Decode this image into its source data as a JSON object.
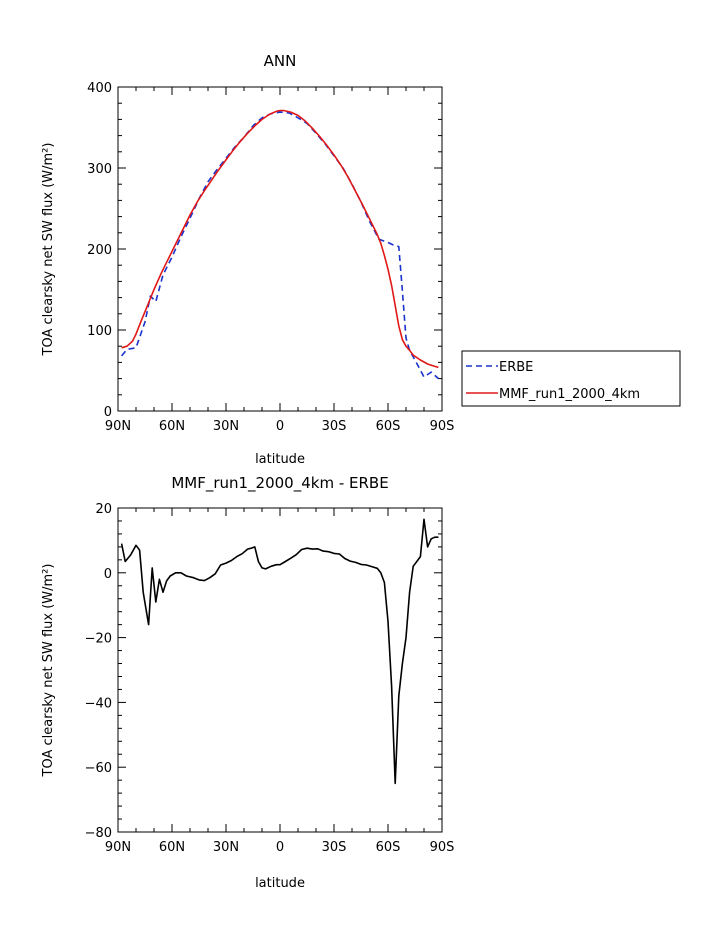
{
  "chart_data": [
    {
      "type": "line",
      "title": "ANN",
      "xlabel": "latitude",
      "ylabel": "TOA clearsky net SW flux (W/m²)",
      "xlim": [
        -90,
        90
      ],
      "ylim": [
        0,
        400
      ],
      "x_tick_values": [
        -90,
        -60,
        -30,
        0,
        30,
        60,
        90
      ],
      "x_tick_labels": [
        "90N",
        "60N",
        "30N",
        "0",
        "30S",
        "60S",
        "90S"
      ],
      "y_ticks": [
        0,
        100,
        200,
        300,
        400
      ],
      "grid": false,
      "legend_position": "right",
      "series": [
        {
          "name": "ERBE",
          "color": "#1a33cc",
          "dash": "dashed",
          "x": [
            -88,
            -85,
            -80,
            -75,
            -72,
            -69,
            -65,
            -60,
            -55,
            -50,
            -45,
            -40,
            -35,
            -30,
            -25,
            -20,
            -15,
            -10,
            -5,
            0,
            5,
            10,
            15,
            20,
            25,
            30,
            35,
            40,
            45,
            50,
            55,
            60,
            63,
            66,
            68,
            70,
            72,
            75,
            80,
            84,
            88
          ],
          "y": [
            68,
            76,
            78,
            110,
            142,
            135,
            168,
            190,
            215,
            238,
            262,
            283,
            298,
            312,
            326,
            338,
            352,
            362,
            367,
            369,
            368,
            362,
            355,
            343,
            330,
            315,
            300,
            280,
            258,
            233,
            212,
            208,
            205,
            203,
            148,
            90,
            75,
            63,
            42,
            48,
            40
          ]
        },
        {
          "name": "MMF_run1_2000_4km",
          "color": "#e01818",
          "dash": "solid",
          "x": [
            -88,
            -85,
            -82,
            -80,
            -77,
            -74,
            -70,
            -66,
            -62,
            -58,
            -54,
            -50,
            -46,
            -42,
            -38,
            -34,
            -30,
            -26,
            -22,
            -18,
            -14,
            -10,
            -6,
            -2,
            0,
            2,
            6,
            10,
            14,
            18,
            22,
            26,
            30,
            34,
            38,
            42,
            46,
            50,
            54,
            56,
            58,
            60,
            62,
            64,
            66,
            68,
            70,
            72,
            74,
            78,
            82,
            86,
            88
          ],
          "y": [
            78,
            80,
            86,
            95,
            112,
            128,
            150,
            170,
            188,
            206,
            224,
            242,
            258,
            272,
            285,
            298,
            310,
            322,
            333,
            343,
            352,
            360,
            366,
            370,
            371,
            371,
            369,
            365,
            358,
            349,
            339,
            328,
            316,
            303,
            288,
            271,
            254,
            236,
            218,
            207,
            192,
            175,
            155,
            130,
            105,
            88,
            80,
            75,
            69,
            63,
            58,
            55,
            54
          ]
        }
      ]
    },
    {
      "type": "line",
      "title": "MMF_run1_2000_4km - ERBE",
      "xlabel": "latitude",
      "ylabel": "TOA clearsky net SW flux (W/m²)",
      "xlim": [
        -90,
        90
      ],
      "ylim": [
        -80,
        20
      ],
      "x_tick_values": [
        -90,
        -60,
        -30,
        0,
        30,
        60,
        90
      ],
      "x_tick_labels": [
        "90N",
        "60N",
        "30N",
        "0",
        "30S",
        "60S",
        "90S"
      ],
      "y_ticks": [
        -80,
        -60,
        -40,
        -20,
        0,
        20
      ],
      "grid": false,
      "series": [
        {
          "color": "#000000",
          "dash": "solid",
          "x": [
            -88,
            -86,
            -83,
            -80,
            -78,
            -76,
            -73,
            -71,
            -69,
            -67,
            -65,
            -63,
            -61,
            -58,
            -55,
            -52,
            -48,
            -45,
            -42,
            -39,
            -36,
            -33,
            -30,
            -27,
            -24,
            -21,
            -18,
            -16,
            -14,
            -12,
            -10,
            -8,
            -5,
            -2,
            0,
            3,
            6,
            9,
            12,
            15,
            18,
            21,
            24,
            27,
            30,
            33,
            36,
            39,
            42,
            45,
            48,
            51,
            54,
            56,
            58,
            60,
            62,
            64,
            66,
            68,
            70,
            72,
            74,
            76,
            78,
            80,
            82,
            84,
            86,
            88
          ],
          "y": [
            9,
            3.5,
            5.5,
            8.5,
            7,
            -6,
            -16,
            1.5,
            -9,
            -2,
            -6,
            -2.5,
            -1,
            0,
            0,
            -1,
            -1.5,
            -2.2,
            -2.4,
            -1.5,
            -0.3,
            2.4,
            3,
            3.8,
            5,
            5.9,
            7.3,
            7.6,
            8,
            3.5,
            1.5,
            1.2,
            2,
            2.5,
            2.5,
            3.5,
            4.5,
            5.6,
            7.2,
            7.6,
            7.3,
            7.4,
            6.7,
            6.5,
            6,
            5.8,
            4.4,
            3.6,
            3.2,
            2.6,
            2.4,
            1.9,
            1.4,
            0,
            -3,
            -15,
            -35,
            -65,
            -38,
            -28,
            -20,
            -6,
            2,
            3.5,
            5,
            16.5,
            8,
            10.5,
            11,
            11
          ]
        }
      ]
    }
  ]
}
